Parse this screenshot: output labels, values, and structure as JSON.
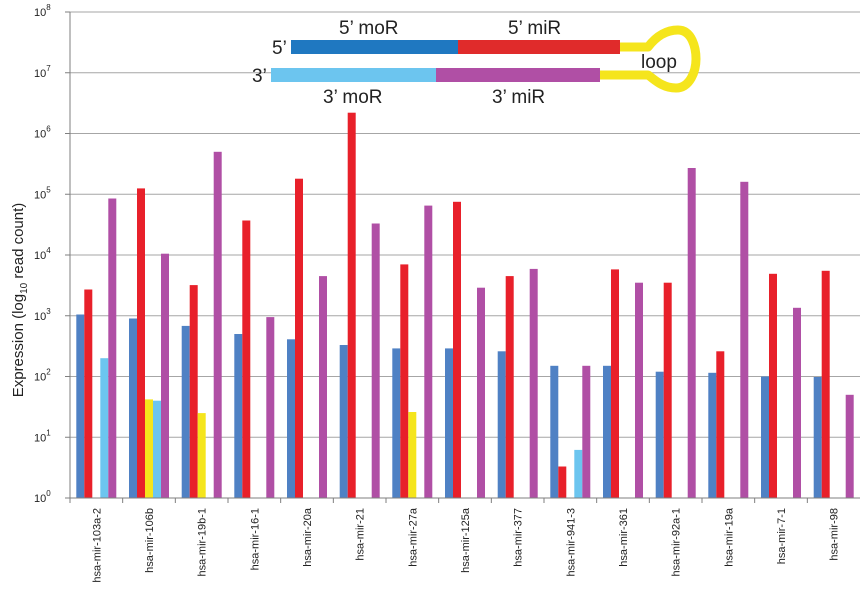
{
  "chart_data": {
    "type": "bar",
    "title": "",
    "xlabel": "",
    "ylabel": "Expression (log10 read count)",
    "ylabel_parts": {
      "prefix": "Expression (log",
      "sub": "10",
      "suffix": " read count)"
    },
    "yscale": "log",
    "ylim": [
      1,
      100000000
    ],
    "y_ticks": [
      {
        "base": "10",
        "exp": "0"
      },
      {
        "base": "10",
        "exp": "1"
      },
      {
        "base": "10",
        "exp": "2"
      },
      {
        "base": "10",
        "exp": "3"
      },
      {
        "base": "10",
        "exp": "4"
      },
      {
        "base": "10",
        "exp": "5"
      },
      {
        "base": "10",
        "exp": "6"
      },
      {
        "base": "10",
        "exp": "7"
      },
      {
        "base": "10",
        "exp": "8"
      }
    ],
    "grid": true,
    "categories": [
      "hsa-mir-103a-2",
      "hsa-mir-106b",
      "hsa-mir-19b-1",
      "hsa-mir-16-1",
      "hsa-mir-20a",
      "hsa-mir-21",
      "hsa-mir-27a",
      "hsa-mir-125a",
      "hsa-mir-377",
      "hsa-mir-941-3",
      "hsa-mir-361",
      "hsa-mir-92a-1",
      "hsa-mir-19a",
      "hsa-mir-7-1",
      "hsa-mir-98"
    ],
    "series": [
      {
        "name": "5' moR",
        "color": "#4f81c4",
        "values": [
          1050,
          900,
          680,
          500,
          410,
          330,
          290,
          290,
          260,
          150,
          150,
          120,
          115,
          100,
          98
        ]
      },
      {
        "name": "5' miR",
        "color": "#e8202a",
        "values": [
          2700,
          125000,
          3200,
          37000,
          180000,
          2200000,
          7000,
          75000,
          4500,
          3.3,
          5800,
          3500,
          260,
          4900,
          5500
        ]
      },
      {
        "name": "loop",
        "color": "#f5e51c",
        "values": [
          null,
          42,
          25,
          null,
          null,
          null,
          26,
          null,
          null,
          null,
          null,
          null,
          null,
          null,
          null
        ]
      },
      {
        "name": "3' moR",
        "color": "#6cc5ef",
        "values": [
          200,
          40,
          null,
          null,
          null,
          null,
          null,
          null,
          null,
          6.2,
          null,
          null,
          null,
          null,
          null
        ]
      },
      {
        "name": "3' miR",
        "color": "#b04fa5",
        "values": [
          85000,
          10500,
          500000,
          950,
          4500,
          33000,
          65000,
          2900,
          5900,
          150,
          3500,
          270000,
          160000,
          1350,
          50
        ]
      }
    ]
  },
  "diagram": {
    "five_prime_end": "5’",
    "three_prime_end": "3’",
    "label_5_moR": "5’ moR",
    "label_5_miR": "5’ miR",
    "label_3_moR": "3’ moR",
    "label_3_miR": "3’ miR",
    "label_loop": "loop",
    "colors": {
      "five_moR": "#1f78c1",
      "five_miR": "#e02b2b",
      "three_moR": "#6cc5ef",
      "three_miR": "#b04fa5",
      "loop": "#f5e51c"
    }
  }
}
